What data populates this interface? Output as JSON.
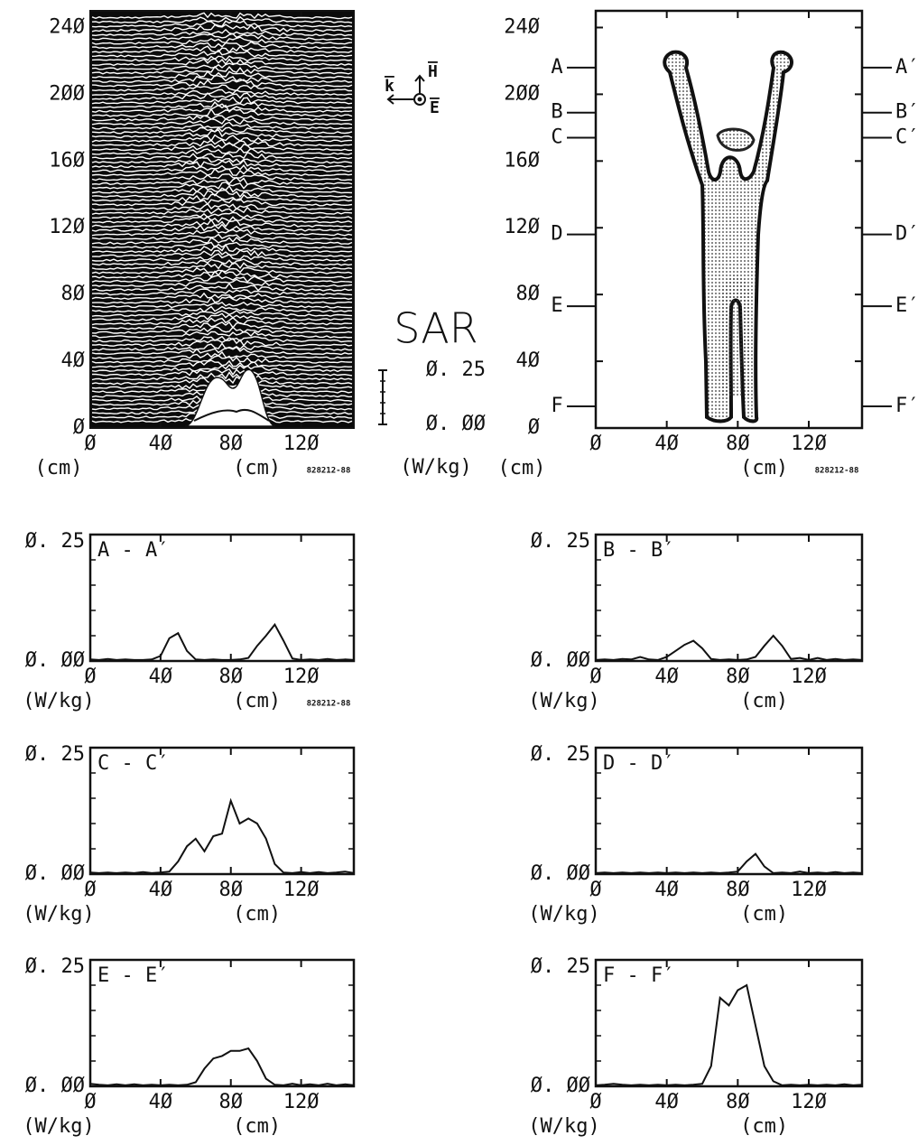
{
  "chart_data": [
    {
      "type": "waterfall",
      "xlim": [
        0,
        150
      ],
      "ylim": [
        0,
        250
      ],
      "xticks": [
        {
          "value": 0,
          "label": "Ø"
        },
        {
          "value": 40,
          "label": "4Ø"
        },
        {
          "value": 80,
          "label": "8Ø"
        },
        {
          "value": 120,
          "label": "12Ø"
        }
      ],
      "yticks": [
        {
          "value": 0,
          "label": "Ø"
        },
        {
          "value": 40,
          "label": "4Ø"
        },
        {
          "value": 80,
          "label": "8Ø"
        },
        {
          "value": 120,
          "label": "12Ø"
        },
        {
          "value": 160,
          "label": "16Ø"
        },
        {
          "value": 200,
          "label": "2ØØ"
        },
        {
          "value": 240,
          "label": "24Ø"
        }
      ],
      "y_label": "(cm)",
      "x_label": "(cm)",
      "stamp": "828212-88",
      "vectors": {
        "k": "k",
        "H": "H",
        "E": "E"
      },
      "colorbar": {
        "title": "SAR",
        "unit": "(W/kg)",
        "ticks": [
          {
            "value": 0,
            "label": "Ø. ØØ"
          },
          {
            "value": 0.25,
            "label": "Ø. 25"
          }
        ]
      }
    },
    {
      "type": "contour",
      "xlim": [
        0,
        150
      ],
      "ylim": [
        0,
        250
      ],
      "xticks": [
        {
          "value": 0,
          "label": "Ø"
        },
        {
          "value": 40,
          "label": "4Ø"
        },
        {
          "value": 80,
          "label": "8Ø"
        },
        {
          "value": 120,
          "label": "12Ø"
        }
      ],
      "yticks": [
        {
          "value": 0,
          "label": "Ø"
        },
        {
          "value": 40,
          "label": "4Ø"
        },
        {
          "value": 80,
          "label": "8Ø"
        },
        {
          "value": 120,
          "label": "12Ø"
        },
        {
          "value": 160,
          "label": "16Ø"
        },
        {
          "value": 200,
          "label": "2ØØ"
        },
        {
          "value": 240,
          "label": "24Ø"
        }
      ],
      "y_label": "(cm)",
      "x_label": "(cm)",
      "stamp": "828212-88",
      "sections": [
        {
          "label": "A",
          "label_right": "A′",
          "y": 216
        },
        {
          "label": "B",
          "label_right": "B′",
          "y": 189
        },
        {
          "label": "C",
          "label_right": "C′",
          "y": 174
        },
        {
          "label": "D",
          "label_right": "D′",
          "y": 116
        },
        {
          "label": "E",
          "label_right": "E′",
          "y": 73
        },
        {
          "label": "F",
          "label_right": "F′",
          "y": 13
        }
      ]
    },
    {
      "type": "line",
      "title": "A - A′",
      "stamp": "828212-88",
      "x": [
        0,
        5,
        10,
        15,
        20,
        25,
        30,
        35,
        40,
        45,
        50,
        55,
        60,
        65,
        70,
        75,
        80,
        85,
        90,
        95,
        100,
        105,
        110,
        115,
        120,
        125,
        130,
        135,
        140,
        145,
        150
      ],
      "values": [
        0.003,
        0.002,
        0.004,
        0.002,
        0.003,
        0.002,
        0.002,
        0.003,
        0.01,
        0.045,
        0.055,
        0.02,
        0.003,
        0.002,
        0.003,
        0.002,
        0.002,
        0.003,
        0.006,
        0.03,
        0.05,
        0.072,
        0.04,
        0.005,
        0.002,
        0.003,
        0.002,
        0.004,
        0.002,
        0.003,
        0.002
      ],
      "xlim": [
        0,
        150
      ],
      "ylim": [
        0,
        0.25
      ],
      "xticks": [
        {
          "value": 0,
          "label": "Ø"
        },
        {
          "value": 40,
          "label": "4Ø"
        },
        {
          "value": 80,
          "label": "8Ø"
        },
        {
          "value": 120,
          "label": "12Ø"
        }
      ],
      "yticks": [
        {
          "value": 0,
          "label": "Ø. ØØ"
        },
        {
          "value": 0.25,
          "label": "Ø. 25"
        }
      ],
      "y_label": "(W/kg)",
      "x_label": "(cm)"
    },
    {
      "type": "line",
      "title": "B - B′",
      "x": [
        0,
        5,
        10,
        15,
        20,
        25,
        30,
        35,
        40,
        45,
        50,
        55,
        60,
        65,
        70,
        75,
        80,
        85,
        90,
        95,
        100,
        105,
        110,
        115,
        120,
        125,
        130,
        135,
        140,
        145,
        150
      ],
      "values": [
        0.002,
        0.003,
        0.002,
        0.004,
        0.003,
        0.008,
        0.003,
        0.002,
        0.008,
        0.02,
        0.032,
        0.04,
        0.025,
        0.004,
        0.002,
        0.003,
        0.002,
        0.003,
        0.008,
        0.03,
        0.05,
        0.03,
        0.004,
        0.006,
        0.002,
        0.006,
        0.002,
        0.004,
        0.002,
        0.003,
        0.002
      ],
      "xlim": [
        0,
        150
      ],
      "ylim": [
        0,
        0.25
      ],
      "xticks": [
        {
          "value": 0,
          "label": "Ø"
        },
        {
          "value": 40,
          "label": "4Ø"
        },
        {
          "value": 80,
          "label": "8Ø"
        },
        {
          "value": 120,
          "label": "12Ø"
        }
      ],
      "yticks": [
        {
          "value": 0,
          "label": "Ø. ØØ"
        },
        {
          "value": 0.25,
          "label": "Ø. 25"
        }
      ],
      "y_label": "(W/kg)",
      "x_label": "(cm)"
    },
    {
      "type": "line",
      "title": "C - C′",
      "x": [
        0,
        5,
        10,
        15,
        20,
        25,
        30,
        35,
        40,
        45,
        50,
        55,
        60,
        65,
        70,
        75,
        80,
        85,
        90,
        95,
        100,
        105,
        110,
        115,
        120,
        125,
        130,
        135,
        140,
        145,
        150
      ],
      "values": [
        0.003,
        0.002,
        0.003,
        0.002,
        0.003,
        0.002,
        0.004,
        0.002,
        0.003,
        0.005,
        0.025,
        0.055,
        0.07,
        0.045,
        0.075,
        0.08,
        0.145,
        0.1,
        0.11,
        0.1,
        0.07,
        0.02,
        0.003,
        0.002,
        0.004,
        0.002,
        0.004,
        0.002,
        0.003,
        0.005,
        0.002
      ],
      "xlim": [
        0,
        150
      ],
      "ylim": [
        0,
        0.25
      ],
      "xticks": [
        {
          "value": 0,
          "label": "Ø"
        },
        {
          "value": 40,
          "label": "4Ø"
        },
        {
          "value": 80,
          "label": "8Ø"
        },
        {
          "value": 120,
          "label": "12Ø"
        }
      ],
      "yticks": [
        {
          "value": 0,
          "label": "Ø. ØØ"
        },
        {
          "value": 0.25,
          "label": "Ø. 25"
        }
      ],
      "y_label": "(W/kg)",
      "x_label": "(cm)"
    },
    {
      "type": "line",
      "title": "D - D′",
      "x": [
        0,
        5,
        10,
        15,
        20,
        25,
        30,
        35,
        40,
        45,
        50,
        55,
        60,
        65,
        70,
        75,
        80,
        85,
        90,
        95,
        100,
        105,
        110,
        115,
        120,
        125,
        130,
        135,
        140,
        145,
        150
      ],
      "values": [
        0.002,
        0.003,
        0.002,
        0.003,
        0.002,
        0.003,
        0.002,
        0.003,
        0.002,
        0.003,
        0.002,
        0.003,
        0.002,
        0.003,
        0.002,
        0.003,
        0.005,
        0.025,
        0.04,
        0.015,
        0.002,
        0.003,
        0.002,
        0.005,
        0.002,
        0.003,
        0.002,
        0.004,
        0.002,
        0.003,
        0.002
      ],
      "xlim": [
        0,
        150
      ],
      "ylim": [
        0,
        0.25
      ],
      "xticks": [
        {
          "value": 0,
          "label": "Ø"
        },
        {
          "value": 40,
          "label": "4Ø"
        },
        {
          "value": 80,
          "label": "8Ø"
        },
        {
          "value": 120,
          "label": "12Ø"
        }
      ],
      "yticks": [
        {
          "value": 0,
          "label": "Ø. ØØ"
        },
        {
          "value": 0.25,
          "label": "Ø. 25"
        }
      ],
      "y_label": "(W/kg)",
      "x_label": "(cm)"
    },
    {
      "type": "line",
      "title": "E - E′",
      "x": [
        0,
        5,
        10,
        15,
        20,
        25,
        30,
        35,
        40,
        45,
        50,
        55,
        60,
        65,
        70,
        75,
        80,
        85,
        90,
        95,
        100,
        105,
        110,
        115,
        120,
        125,
        130,
        135,
        140,
        145,
        150
      ],
      "values": [
        0.005,
        0.003,
        0.002,
        0.004,
        0.002,
        0.004,
        0.002,
        0.003,
        0.002,
        0.003,
        0.002,
        0.003,
        0.008,
        0.035,
        0.055,
        0.06,
        0.07,
        0.07,
        0.075,
        0.05,
        0.015,
        0.003,
        0.002,
        0.005,
        0.002,
        0.004,
        0.002,
        0.005,
        0.002,
        0.004,
        0.002
      ],
      "xlim": [
        0,
        150
      ],
      "ylim": [
        0,
        0.25
      ],
      "xticks": [
        {
          "value": 0,
          "label": "Ø"
        },
        {
          "value": 40,
          "label": "4Ø"
        },
        {
          "value": 80,
          "label": "8Ø"
        },
        {
          "value": 120,
          "label": "12Ø"
        }
      ],
      "yticks": [
        {
          "value": 0,
          "label": "Ø. ØØ"
        },
        {
          "value": 0.25,
          "label": "Ø. 25"
        }
      ],
      "y_label": "(W/kg)",
      "x_label": "(cm)"
    },
    {
      "type": "line",
      "title": "F - F′",
      "x": [
        0,
        5,
        10,
        15,
        20,
        25,
        30,
        35,
        40,
        45,
        50,
        55,
        60,
        65,
        70,
        75,
        80,
        85,
        90,
        95,
        100,
        105,
        110,
        115,
        120,
        125,
        130,
        135,
        140,
        145,
        150
      ],
      "values": [
        0.002,
        0.003,
        0.005,
        0.003,
        0.002,
        0.003,
        0.002,
        0.003,
        0.002,
        0.003,
        0.002,
        0.003,
        0.005,
        0.04,
        0.175,
        0.16,
        0.19,
        0.2,
        0.12,
        0.04,
        0.01,
        0.002,
        0.003,
        0.002,
        0.003,
        0.002,
        0.003,
        0.002,
        0.004,
        0.002,
        0.003
      ],
      "xlim": [
        0,
        150
      ],
      "ylim": [
        0,
        0.25
      ],
      "xticks": [
        {
          "value": 0,
          "label": "Ø"
        },
        {
          "value": 40,
          "label": "4Ø"
        },
        {
          "value": 80,
          "label": "8Ø"
        },
        {
          "value": 120,
          "label": "12Ø"
        }
      ],
      "yticks": [
        {
          "value": 0,
          "label": "Ø. ØØ"
        },
        {
          "value": 0.25,
          "label": "Ø. 25"
        }
      ],
      "y_label": "(W/kg)",
      "x_label": "(cm)"
    }
  ]
}
